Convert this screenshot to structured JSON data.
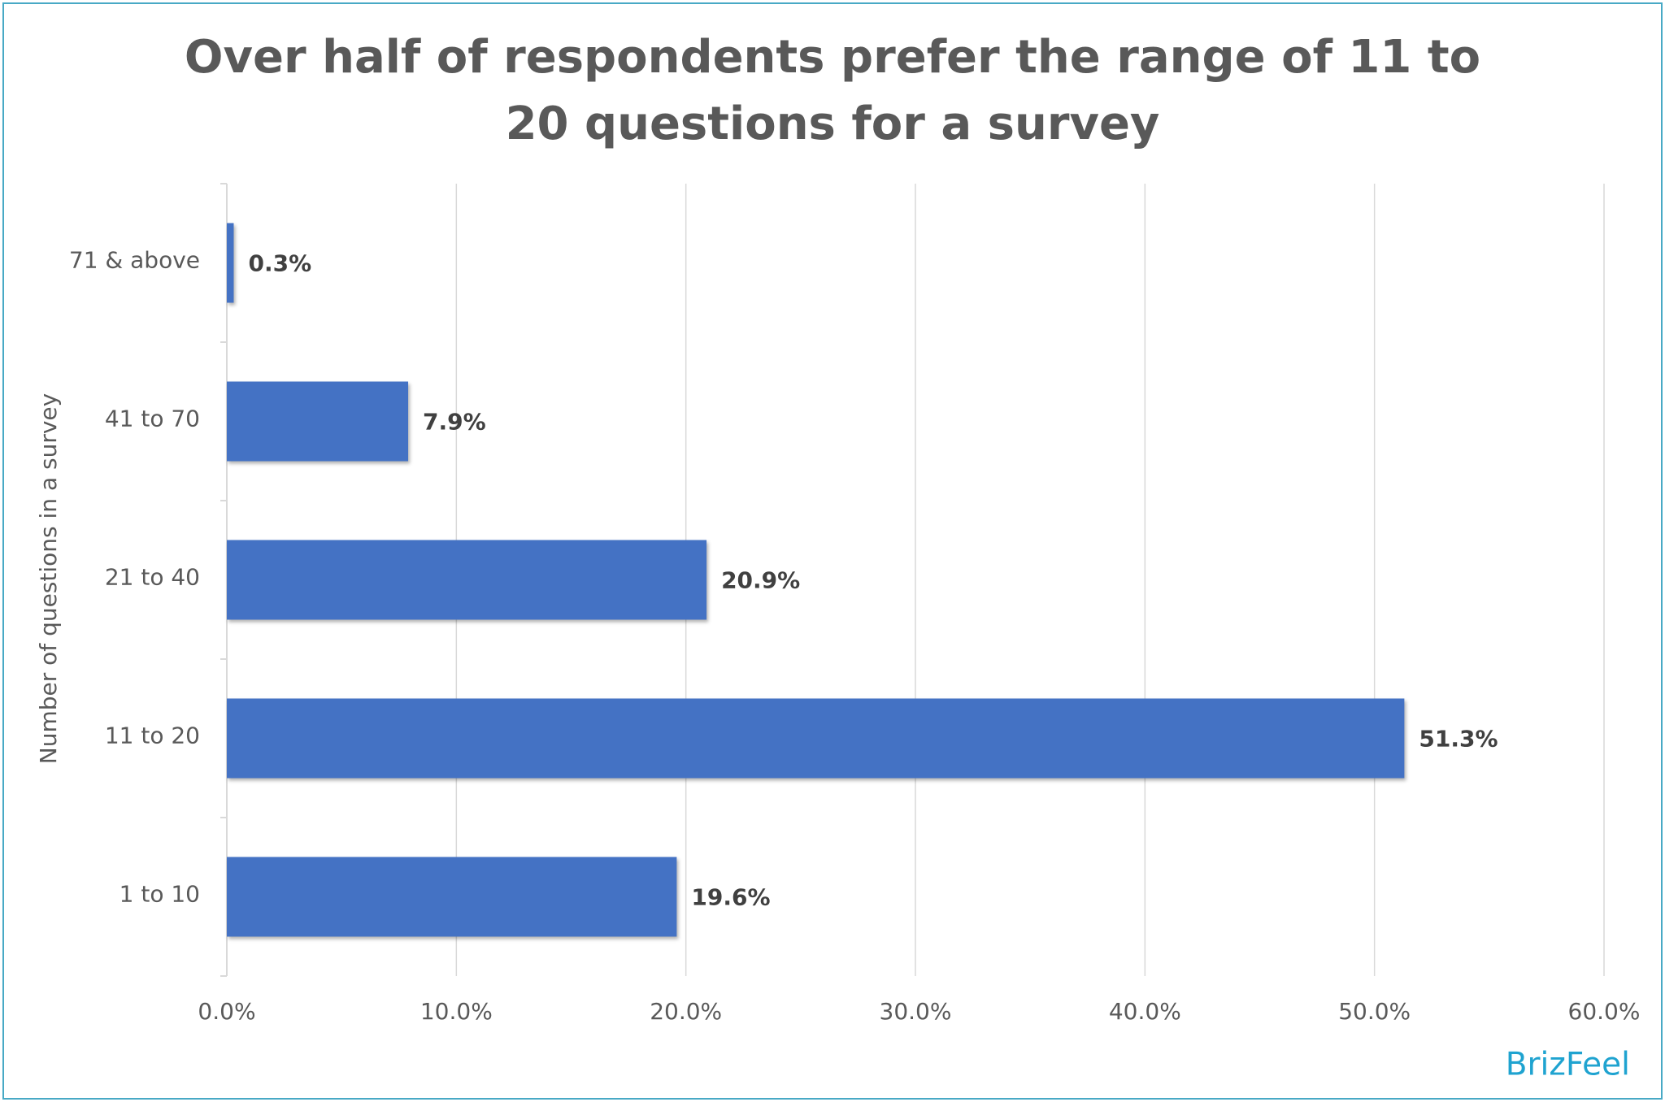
{
  "chart_data": {
    "type": "bar",
    "orientation": "horizontal",
    "title": "Over half of respondents prefer the range of 11 to 20 questions for a survey",
    "y_label": "Number of questions in a survey",
    "categories": [
      "71 & above",
      "41 to 70",
      "21 to 40",
      "11 to 20",
      "1 to 10"
    ],
    "values": [
      0.3,
      7.9,
      20.9,
      51.3,
      19.6
    ],
    "value_labels": [
      "0.3%",
      "7.9%",
      "20.9%",
      "51.3%",
      "19.6%"
    ],
    "color": "#4472c4",
    "xlim": [
      0,
      60
    ],
    "xticks": [
      {
        "value": 0,
        "label": "0.0%"
      },
      {
        "value": 10,
        "label": "10.0%"
      },
      {
        "value": 20,
        "label": "20.0%"
      },
      {
        "value": 30,
        "label": "30.0%"
      },
      {
        "value": 40,
        "label": "40.0%"
      },
      {
        "value": 50,
        "label": "50.0%"
      },
      {
        "value": 60,
        "label": "60.0%"
      }
    ],
    "grid": true,
    "brand": "BrizFeel"
  }
}
